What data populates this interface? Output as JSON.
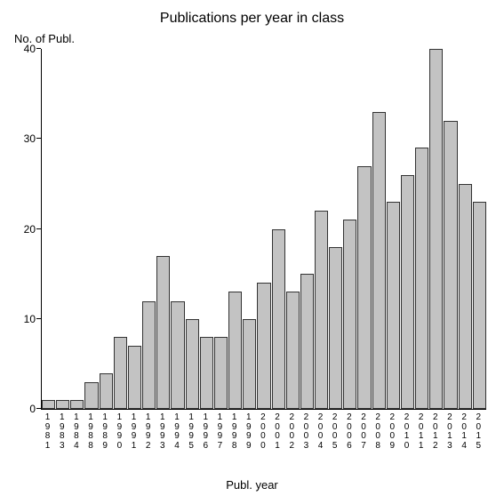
{
  "chart": {
    "type": "bar",
    "title": "Publications per year in class",
    "title_fontsize": 16,
    "y_axis_title": "No. of Publ.",
    "x_axis_title": "Publ. year",
    "label_fontsize": 13,
    "tick_fontsize": 12,
    "x_tick_fontsize": 10,
    "background_color": "#ffffff",
    "bar_fill_color": "#c3c3c3",
    "bar_border_color": "#333333",
    "axis_color": "#000000",
    "ylim": [
      0,
      40
    ],
    "y_ticks": [
      0,
      10,
      20,
      30,
      40
    ],
    "bars": [
      {
        "year": "1981",
        "value": 1
      },
      {
        "year": "1983",
        "value": 1
      },
      {
        "year": "1984",
        "value": 1
      },
      {
        "year": "1988",
        "value": 3
      },
      {
        "year": "1989",
        "value": 4
      },
      {
        "year": "1990",
        "value": 8
      },
      {
        "year": "1991",
        "value": 7
      },
      {
        "year": "1992",
        "value": 12
      },
      {
        "year": "1993",
        "value": 17
      },
      {
        "year": "1994",
        "value": 12
      },
      {
        "year": "1995",
        "value": 10
      },
      {
        "year": "1996",
        "value": 8
      },
      {
        "year": "1997",
        "value": 8
      },
      {
        "year": "1998",
        "value": 13
      },
      {
        "year": "1999",
        "value": 10
      },
      {
        "year": "2000",
        "value": 14
      },
      {
        "year": "2001",
        "value": 20
      },
      {
        "year": "2002",
        "value": 13
      },
      {
        "year": "2003",
        "value": 15
      },
      {
        "year": "2004",
        "value": 22
      },
      {
        "year": "2005",
        "value": 18
      },
      {
        "year": "2006",
        "value": 21
      },
      {
        "year": "2007",
        "value": 27
      },
      {
        "year": "2008",
        "value": 33
      },
      {
        "year": "2009",
        "value": 23
      },
      {
        "year": "2010",
        "value": 26
      },
      {
        "year": "2011",
        "value": 29
      },
      {
        "year": "2012",
        "value": 40
      },
      {
        "year": "2013",
        "value": 32
      },
      {
        "year": "2014",
        "value": 25
      },
      {
        "year": "2015",
        "value": 23
      }
    ]
  }
}
